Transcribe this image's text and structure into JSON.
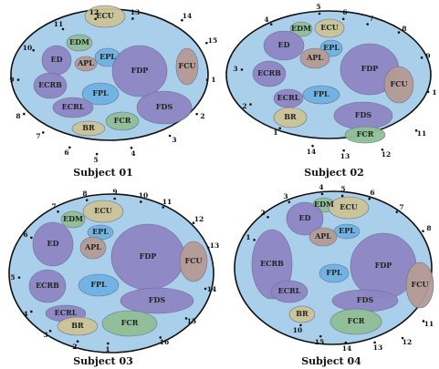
{
  "panels": [
    {
      "caption": "Subject 01",
      "muscles": [
        "ECU",
        "EDM",
        "ED",
        "APL",
        "EPL",
        "FDP",
        "FCU",
        "ECRB",
        "FPL",
        "ECRL",
        "FDS",
        "FCR",
        "BR"
      ],
      "points": [
        "12",
        "13",
        "14",
        "15",
        "1",
        "2",
        "3",
        "4",
        "5",
        "6",
        "7",
        "8",
        "9",
        "10",
        "11"
      ]
    },
    {
      "caption": "Subject 02",
      "muscles": [
        "EDM",
        "ECU",
        "ED",
        "EPL",
        "APL",
        "FDP",
        "FCU",
        "ECRB",
        "FPL",
        "ECRL",
        "BR",
        "FDS",
        "FCR"
      ],
      "points": [
        "4",
        "5",
        "6",
        "7",
        "8",
        "9",
        "1",
        "11",
        "12",
        "13",
        "14",
        "1",
        "2",
        "3"
      ]
    },
    {
      "caption": "Subject 03",
      "muscles": [
        "EDM",
        "ECU",
        "EPL",
        "ED",
        "APL",
        "FDP",
        "FCU",
        "ECRB",
        "FPL",
        "ECRL",
        "FDS",
        "BR",
        "FCR"
      ],
      "points": [
        "7",
        "8",
        "9",
        "10",
        "11",
        "12",
        "13",
        "14",
        "15",
        "16",
        "1",
        "2",
        "3",
        "4",
        "5",
        "6"
      ]
    },
    {
      "caption": "Subject 04",
      "muscles": [
        "EDM",
        "ECU",
        "ED",
        "EPL",
        "APL",
        "ECRB",
        "FDP",
        "FPL",
        "FCU",
        "ECRL",
        "FDS",
        "BR",
        "FCR"
      ],
      "points": [
        "4",
        "5",
        "6",
        "7",
        "8",
        "11",
        "12",
        "13",
        "14",
        "15",
        "10",
        "1",
        "2",
        "3"
      ]
    }
  ]
}
